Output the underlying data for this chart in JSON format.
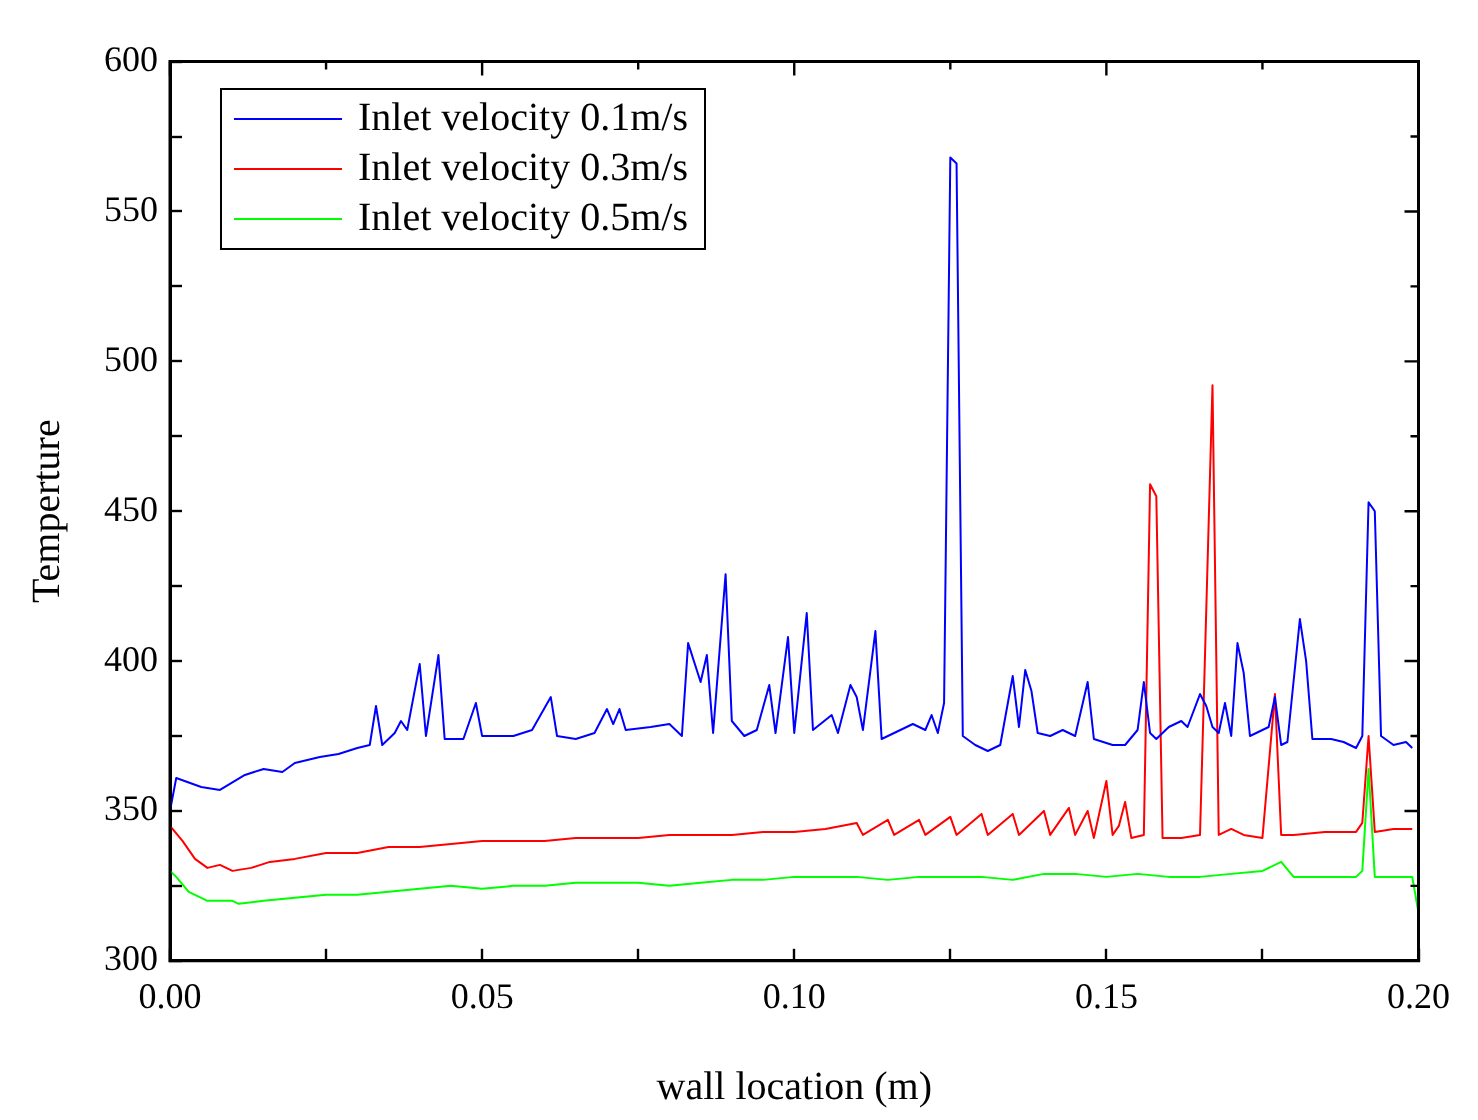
{
  "chart_data": {
    "type": "line",
    "xlabel": "wall location (m)",
    "ylabel": "Temperture",
    "xlim": [
      0,
      0.2
    ],
    "ylim": [
      300,
      600
    ],
    "xticks": [
      {
        "value": 0,
        "label": "0.00"
      },
      {
        "value": 0.025,
        "label": null
      },
      {
        "value": 0.05,
        "label": "0.05"
      },
      {
        "value": 0.075,
        "label": null
      },
      {
        "value": 0.1,
        "label": "0.10"
      },
      {
        "value": 0.125,
        "label": null
      },
      {
        "value": 0.15,
        "label": "0.15"
      },
      {
        "value": 0.175,
        "label": null
      },
      {
        "value": 0.2,
        "label": "0.20"
      }
    ],
    "yticks": [
      300,
      {
        "value": 325,
        "label": null
      },
      350,
      {
        "value": 375,
        "label": null
      },
      400,
      {
        "value": 425,
        "label": null
      },
      450,
      {
        "value": 475,
        "label": null
      },
      500,
      {
        "value": 525,
        "label": null
      },
      550,
      {
        "value": 575,
        "label": null
      },
      600
    ],
    "grid": false,
    "legend": "top left",
    "marker": "none",
    "line_style": "solid",
    "series": [
      {
        "name": "Inlet velocity 0.1m/s",
        "color": "#0000ff",
        "x": [
          0,
          0.001,
          0.005,
          0.008,
          0.012,
          0.015,
          0.018,
          0.02,
          0.024,
          0.027,
          0.03,
          0.032,
          0.033,
          0.034,
          0.036,
          0.037,
          0.038,
          0.04,
          0.041,
          0.043,
          0.044,
          0.047,
          0.049,
          0.05,
          0.055,
          0.058,
          0.061,
          0.062,
          0.065,
          0.068,
          0.07,
          0.071,
          0.072,
          0.073,
          0.077,
          0.08,
          0.082,
          0.083,
          0.085,
          0.086,
          0.087,
          0.089,
          0.09,
          0.092,
          0.094,
          0.096,
          0.097,
          0.099,
          0.1,
          0.102,
          0.103,
          0.106,
          0.107,
          0.109,
          0.11,
          0.111,
          0.113,
          0.114,
          0.117,
          0.119,
          0.121,
          0.122,
          0.123,
          0.124,
          0.125,
          0.126,
          0.127,
          0.129,
          0.131,
          0.133,
          0.135,
          0.136,
          0.137,
          0.138,
          0.139,
          0.141,
          0.143,
          0.145,
          0.147,
          0.148,
          0.151,
          0.153,
          0.155,
          0.156,
          0.157,
          0.158,
          0.16,
          0.162,
          0.163,
          0.165,
          0.166,
          0.167,
          0.168,
          0.169,
          0.17,
          0.171,
          0.172,
          0.173,
          0.174,
          0.176,
          0.177,
          0.178,
          0.179,
          0.181,
          0.182,
          0.183,
          0.186,
          0.188,
          0.19,
          0.191,
          0.192,
          0.193,
          0.194,
          0.196,
          0.198,
          0.199
        ],
        "values": [
          350,
          361,
          358,
          357,
          362,
          364,
          363,
          366,
          368,
          369,
          371,
          372,
          385,
          372,
          376,
          380,
          377,
          399,
          375,
          402,
          374,
          374,
          386,
          375,
          375,
          377,
          388,
          375,
          374,
          376,
          384,
          379,
          384,
          377,
          378,
          379,
          375,
          406,
          393,
          402,
          376,
          429,
          380,
          375,
          377,
          392,
          376,
          408,
          376,
          416,
          377,
          382,
          376,
          392,
          388,
          377,
          410,
          374,
          377,
          379,
          377,
          382,
          376,
          386,
          568,
          566,
          375,
          372,
          370,
          372,
          395,
          378,
          397,
          390,
          376,
          375,
          377,
          375,
          393,
          374,
          372,
          372,
          377,
          393,
          376,
          374,
          378,
          380,
          378,
          389,
          385,
          378,
          376,
          386,
          375,
          406,
          396,
          375,
          376,
          378,
          388,
          372,
          373,
          414,
          400,
          374,
          374,
          373,
          371,
          375,
          453,
          450,
          375,
          372,
          373,
          371
        ]
      },
      {
        "name": "Inlet velocity 0.3m/s",
        "color": "#ff0000",
        "x": [
          0,
          0.002,
          0.004,
          0.006,
          0.008,
          0.01,
          0.013,
          0.016,
          0.02,
          0.025,
          0.03,
          0.035,
          0.04,
          0.045,
          0.05,
          0.055,
          0.06,
          0.065,
          0.07,
          0.075,
          0.08,
          0.085,
          0.09,
          0.095,
          0.1,
          0.105,
          0.11,
          0.111,
          0.115,
          0.116,
          0.12,
          0.121,
          0.125,
          0.126,
          0.13,
          0.131,
          0.135,
          0.136,
          0.14,
          0.141,
          0.144,
          0.145,
          0.147,
          0.148,
          0.15,
          0.151,
          0.152,
          0.153,
          0.154,
          0.156,
          0.157,
          0.158,
          0.159,
          0.162,
          0.165,
          0.167,
          0.168,
          0.17,
          0.172,
          0.175,
          0.177,
          0.178,
          0.18,
          0.185,
          0.19,
          0.191,
          0.192,
          0.193,
          0.196,
          0.199
        ],
        "values": [
          345,
          340,
          334,
          331,
          332,
          330,
          331,
          333,
          334,
          336,
          336,
          338,
          338,
          339,
          340,
          340,
          340,
          341,
          341,
          341,
          342,
          342,
          342,
          343,
          343,
          344,
          346,
          342,
          347,
          342,
          347,
          342,
          348,
          342,
          349,
          342,
          349,
          342,
          350,
          342,
          351,
          342,
          350,
          341,
          360,
          342,
          345,
          353,
          341,
          342,
          459,
          455,
          341,
          341,
          342,
          492,
          342,
          344,
          342,
          341,
          389,
          342,
          342,
          343,
          343,
          346,
          375,
          343,
          344,
          344
        ]
      },
      {
        "name": "Inlet velocity 0.5m/s",
        "color": "#00ff00",
        "x": [
          0,
          0.001,
          0.003,
          0.006,
          0.01,
          0.011,
          0.015,
          0.02,
          0.025,
          0.03,
          0.035,
          0.04,
          0.045,
          0.05,
          0.055,
          0.06,
          0.065,
          0.07,
          0.075,
          0.08,
          0.085,
          0.09,
          0.095,
          0.1,
          0.105,
          0.11,
          0.115,
          0.12,
          0.125,
          0.13,
          0.135,
          0.14,
          0.145,
          0.15,
          0.155,
          0.16,
          0.165,
          0.17,
          0.175,
          0.178,
          0.18,
          0.185,
          0.19,
          0.191,
          0.192,
          0.193,
          0.196,
          0.199,
          0.2
        ],
        "values": [
          330,
          328,
          323,
          320,
          320,
          319,
          320,
          321,
          322,
          322,
          323,
          324,
          325,
          324,
          325,
          325,
          326,
          326,
          326,
          325,
          326,
          327,
          327,
          328,
          328,
          328,
          327,
          328,
          328,
          328,
          327,
          329,
          329,
          328,
          329,
          328,
          328,
          329,
          330,
          333,
          328,
          328,
          328,
          330,
          364,
          328,
          328,
          328,
          316
        ]
      }
    ]
  }
}
